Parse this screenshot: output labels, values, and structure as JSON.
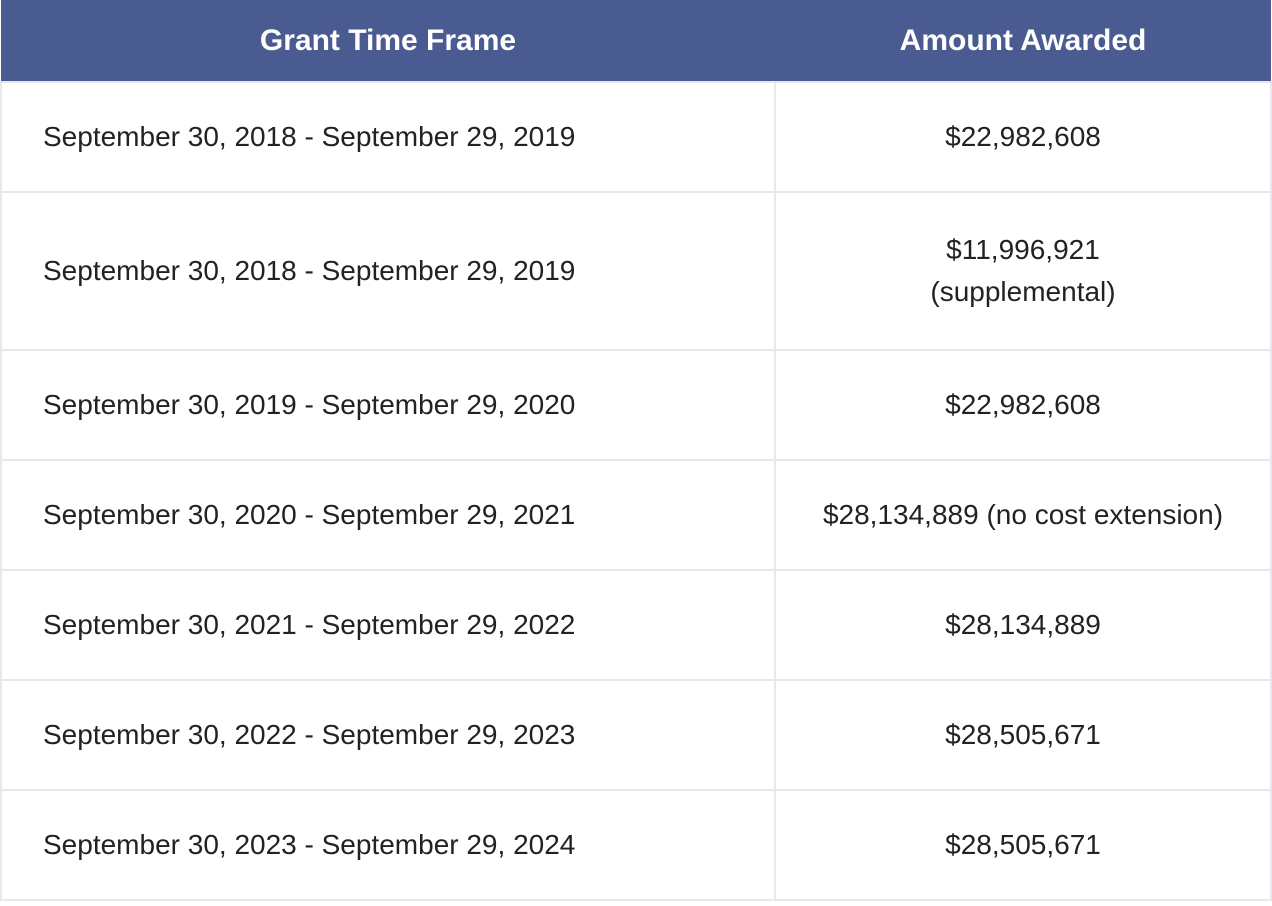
{
  "table": {
    "headers": [
      "Grant Time Frame",
      "Amount Awarded"
    ],
    "header_color": "#4a5b91",
    "rows": [
      {
        "frame": "September 30, 2018 - September 29, 2019",
        "amount": "$22,982,608",
        "note": ""
      },
      {
        "frame": "September 30, 2018 - September 29, 2019",
        "amount": "$11,996,921",
        "note": "(supplemental)"
      },
      {
        "frame": "September 30, 2019 - September 29, 2020",
        "amount": "$22,982,608",
        "note": ""
      },
      {
        "frame": "September 30, 2020 - September 29, 2021",
        "amount": "$28,134,889 (no cost extension)",
        "note": ""
      },
      {
        "frame": "September 30, 2021 - September 29, 2022",
        "amount": "$28,134,889",
        "note": ""
      },
      {
        "frame": "September 30, 2022 - September 29, 2023",
        "amount": "$28,505,671",
        "note": ""
      },
      {
        "frame": "September 30, 2023 - September 29, 2024",
        "amount": "$28,505,671",
        "note": ""
      }
    ]
  }
}
